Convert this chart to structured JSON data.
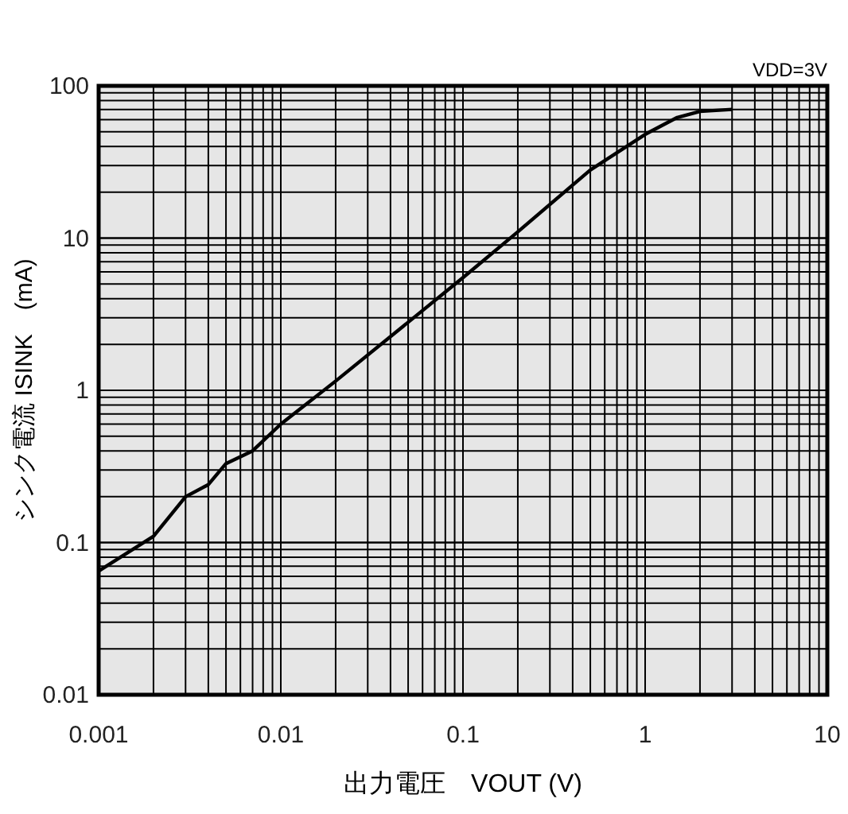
{
  "chart_data": {
    "type": "line",
    "xlabel": "出力電圧　VOUT (V)",
    "ylabel": "シンク電流 ISINK　(mA)",
    "annotations": [
      "VDD=3V"
    ],
    "log": "xy",
    "grid": true,
    "marker": "none",
    "line_style": "solid",
    "xlim": [
      0.001,
      10
    ],
    "xticks": [
      0.001,
      0.01,
      0.1,
      1,
      10
    ],
    "ylim": [
      0.01,
      100
    ],
    "yticks": [
      0.01,
      0.1,
      1,
      10,
      100
    ],
    "x": [
      0.001,
      0.002,
      0.003,
      0.004,
      0.005,
      0.007,
      0.01,
      0.02,
      0.05,
      0.1,
      0.2,
      0.5,
      1,
      1.5,
      2,
      3
    ],
    "series": [
      {
        "color": "#000000",
        "values": [
          0.065,
          0.11,
          0.2,
          0.24,
          0.33,
          0.4,
          0.6,
          1.15,
          2.8,
          5.5,
          11,
          28,
          48,
          62,
          68,
          70
        ]
      }
    ]
  }
}
